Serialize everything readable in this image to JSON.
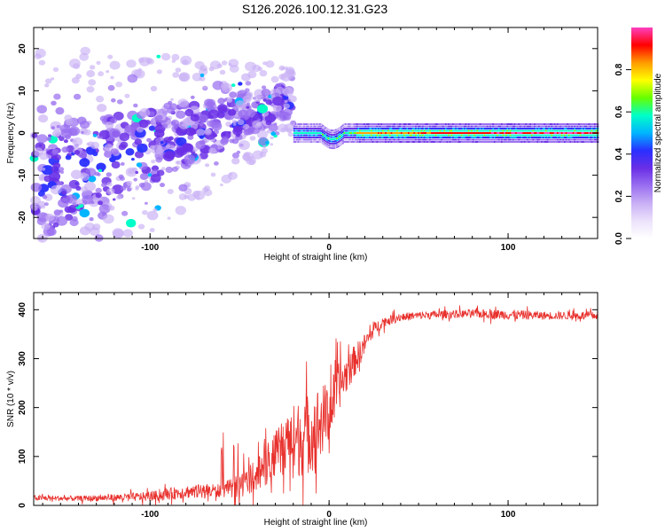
{
  "title": "S126.2026.100.12.31.G23",
  "colors": {
    "snr_line": "#e8302c",
    "frame": "#000000",
    "spectrogram_palette": [
      "#ffffff",
      "#ece2fb",
      "#c9b0f5",
      "#9a6ff0",
      "#6a2fe6",
      "#2a2fff",
      "#00b5ff",
      "#00ffc8",
      "#66ff00",
      "#ffff00",
      "#ff9b00",
      "#ff0000",
      "#ff3fc0"
    ]
  },
  "chart_data": [
    {
      "type": "heatmap",
      "name": "spectrogram",
      "xlabel": "Height of straight line (km)",
      "ylabel": "Frequency (Hz)",
      "xlim": [
        -165,
        150
      ],
      "ylim": [
        -25,
        25
      ],
      "xticks": [
        -100,
        0,
        100
      ],
      "yticks": [
        -20,
        -10,
        0,
        10,
        20
      ],
      "colorbar": {
        "label": "Normalized spectral amplitude",
        "range": [
          0,
          1
        ],
        "ticks": [
          0.0,
          0.2,
          0.4,
          0.6,
          0.8
        ]
      },
      "description_regions": [
        {
          "x_range": [
            -165,
            -20
          ],
          "freq_center_trend": [
            -12,
            8
          ],
          "amplitude": [
            0.1,
            0.35
          ]
        },
        {
          "x_range": [
            -20,
            150
          ],
          "freq_center": 0,
          "freq_halfwidth": 1.5,
          "amplitude_core": [
            0.7,
            0.95
          ]
        }
      ]
    },
    {
      "type": "line",
      "name": "snr",
      "xlabel": "Height of straight line (km)",
      "ylabel": "SNR (10 * v/v)",
      "xlim": [
        -165,
        150
      ],
      "ylim": [
        0,
        435
      ],
      "xticks": [
        -100,
        0,
        100
      ],
      "yticks": [
        0,
        100,
        200,
        300,
        400
      ],
      "trend_x": [
        -165,
        -140,
        -120,
        -100,
        -80,
        -60,
        -50,
        -40,
        -30,
        -20,
        -10,
        -5,
        0,
        5,
        10,
        15,
        20,
        25,
        30,
        40,
        50,
        60,
        80,
        100,
        120,
        150
      ],
      "trend_mean": [
        15,
        14,
        16,
        18,
        28,
        30,
        40,
        65,
        100,
        130,
        150,
        170,
        190,
        240,
        270,
        300,
        330,
        360,
        375,
        385,
        388,
        390,
        392,
        390,
        388,
        388
      ],
      "trend_noise": [
        8,
        8,
        10,
        14,
        20,
        20,
        35,
        50,
        70,
        110,
        120,
        110,
        90,
        70,
        55,
        45,
        30,
        20,
        15,
        12,
        12,
        12,
        12,
        15,
        12,
        12
      ]
    }
  ]
}
